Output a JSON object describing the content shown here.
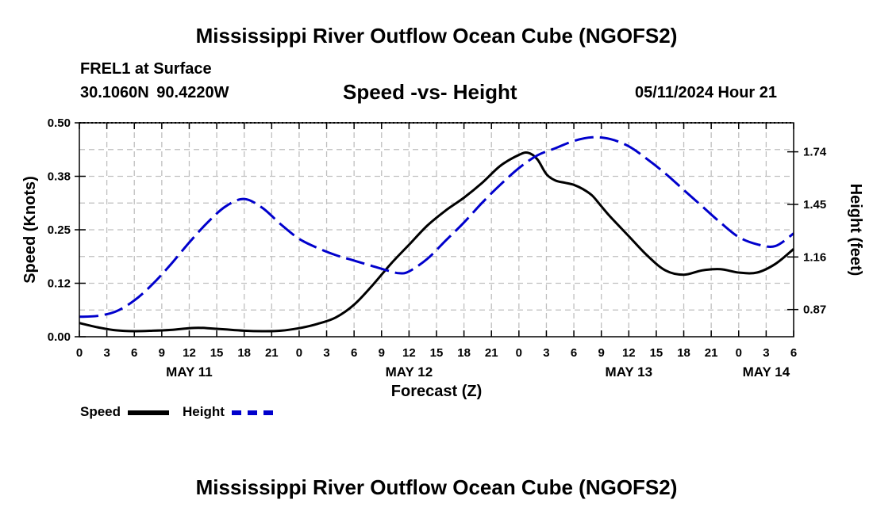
{
  "header": {
    "title": "Mississippi River Outflow Ocean Cube (NGOFS2)",
    "station": "FREL1 at Surface",
    "coordinates": "30.1060N  90.4220W",
    "subtitle": "Speed -vs- Height",
    "forecast_time": "05/11/2024 Hour 21"
  },
  "footer": {
    "title": "Mississippi River Outflow Ocean Cube (NGOFS2)"
  },
  "legend": {
    "speed_label": "Speed",
    "height_label": "Height"
  },
  "colors": {
    "speed": "#000000",
    "height": "#0000cc",
    "grid": "#bfbfbf"
  },
  "chart_data": {
    "type": "line",
    "title": "Speed -vs- Height",
    "xlabel": "Forecast (Z)",
    "ylabel": "Speed (Knots)",
    "y2label": "Height (feet)",
    "xlim": [
      0,
      78
    ],
    "ylim": [
      0,
      0.5
    ],
    "y2lim": [
      0.72,
      1.9
    ],
    "grid": true,
    "legend": "bottom-left",
    "x_tick_values": [
      0,
      3,
      6,
      9,
      12,
      15,
      18,
      21,
      24,
      27,
      30,
      33,
      36,
      39,
      42,
      45,
      48,
      51,
      54,
      57,
      60,
      63,
      66,
      69,
      72,
      75,
      78
    ],
    "x_tick_labels": [
      "0",
      "3",
      "6",
      "9",
      "12",
      "15",
      "18",
      "21",
      "0",
      "3",
      "6",
      "9",
      "12",
      "15",
      "18",
      "21",
      "0",
      "3",
      "6",
      "9",
      "12",
      "15",
      "18",
      "21",
      "0",
      "3",
      "6"
    ],
    "date_labels": [
      {
        "x": 12,
        "label": "MAY 11"
      },
      {
        "x": 36,
        "label": "MAY 12"
      },
      {
        "x": 60,
        "label": "MAY 13"
      },
      {
        "x": 75,
        "label": "MAY 14"
      }
    ],
    "y_tick_values": [
      0,
      0.125,
      0.25,
      0.375,
      0.5
    ],
    "y_tick_labels": [
      "0.00",
      "0.12",
      "0.25",
      "0.38",
      "0.50"
    ],
    "y2_tick_values": [
      0.87,
      1.16,
      1.45,
      1.74
    ],
    "y2_tick_labels": [
      "0.87",
      "1.16",
      "1.45",
      "1.74"
    ],
    "series": [
      {
        "name": "Speed",
        "axis": "left",
        "style": "solid",
        "x": [
          0,
          2,
          4,
          6,
          8,
          10,
          12,
          13,
          14,
          16,
          18,
          20,
          22,
          24,
          26,
          28,
          30,
          32,
          34,
          36,
          38,
          40,
          42,
          44,
          46,
          48,
          49,
          50,
          51,
          52,
          53,
          54,
          55,
          56,
          57,
          58,
          60,
          62,
          64,
          66,
          68,
          70,
          72,
          74,
          76,
          78
        ],
        "values": [
          0.032,
          0.022,
          0.015,
          0.013,
          0.014,
          0.016,
          0.02,
          0.021,
          0.02,
          0.017,
          0.014,
          0.013,
          0.014,
          0.02,
          0.03,
          0.045,
          0.075,
          0.12,
          0.17,
          0.215,
          0.26,
          0.295,
          0.325,
          0.36,
          0.4,
          0.425,
          0.43,
          0.415,
          0.38,
          0.365,
          0.36,
          0.355,
          0.345,
          0.33,
          0.305,
          0.28,
          0.235,
          0.19,
          0.155,
          0.145,
          0.155,
          0.158,
          0.15,
          0.15,
          0.17,
          0.205
        ]
      },
      {
        "name": "Height",
        "axis": "right",
        "style": "dashed",
        "x": [
          0,
          2,
          4,
          6,
          8,
          10,
          12,
          14,
          16,
          18,
          20,
          22,
          24,
          26,
          28,
          30,
          32,
          34,
          35,
          36,
          38,
          40,
          42,
          44,
          46,
          48,
          50,
          52,
          54,
          56,
          58,
          60,
          62,
          64,
          66,
          68,
          70,
          72,
          74,
          76,
          78
        ],
        "values": [
          0.83,
          0.835,
          0.86,
          0.92,
          1.01,
          1.12,
          1.24,
          1.35,
          1.44,
          1.48,
          1.43,
          1.34,
          1.26,
          1.21,
          1.17,
          1.14,
          1.11,
          1.08,
          1.07,
          1.08,
          1.15,
          1.25,
          1.35,
          1.46,
          1.56,
          1.65,
          1.72,
          1.76,
          1.8,
          1.82,
          1.81,
          1.77,
          1.7,
          1.62,
          1.53,
          1.44,
          1.35,
          1.27,
          1.23,
          1.22,
          1.29
        ]
      }
    ]
  }
}
